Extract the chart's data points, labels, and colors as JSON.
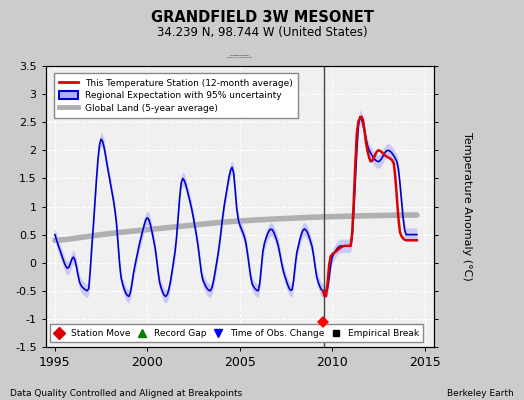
{
  "title": "GRANDFIELD 3W MESONET",
  "subtitle": "34.239 N, 98.744 W (United States)",
  "ylabel": "Temperature Anomaly (°C)",
  "xlabel_left": "Data Quality Controlled and Aligned at Breakpoints",
  "xlabel_right": "Berkeley Earth",
  "ylim": [
    -1.5,
    3.5
  ],
  "xlim": [
    1994.5,
    2015.5
  ],
  "xticks": [
    1995,
    2000,
    2005,
    2010,
    2015
  ],
  "yticks": [
    -1.5,
    -1.0,
    -0.5,
    0.0,
    0.5,
    1.0,
    1.5,
    2.0,
    2.5,
    3.0,
    3.5
  ],
  "plot_bg_color": "#f0f0f0",
  "fig_bg_color": "#cccccc",
  "station_color": "#dd0000",
  "regional_color": "#0000cc",
  "regional_fill_color": "#b0b0ff",
  "global_color": "#b0b0b0",
  "legend_entries": [
    "This Temperature Station (12-month average)",
    "Regional Expectation with 95% uncertainty",
    "Global Land (5-year average)"
  ],
  "legend_marker_labels": [
    "Station Move",
    "Record Gap",
    "Time of Obs. Change",
    "Empirical Break"
  ],
  "station_move_x": 2009.5,
  "station_move_y": -1.05,
  "vertical_line_x": 2009.58
}
